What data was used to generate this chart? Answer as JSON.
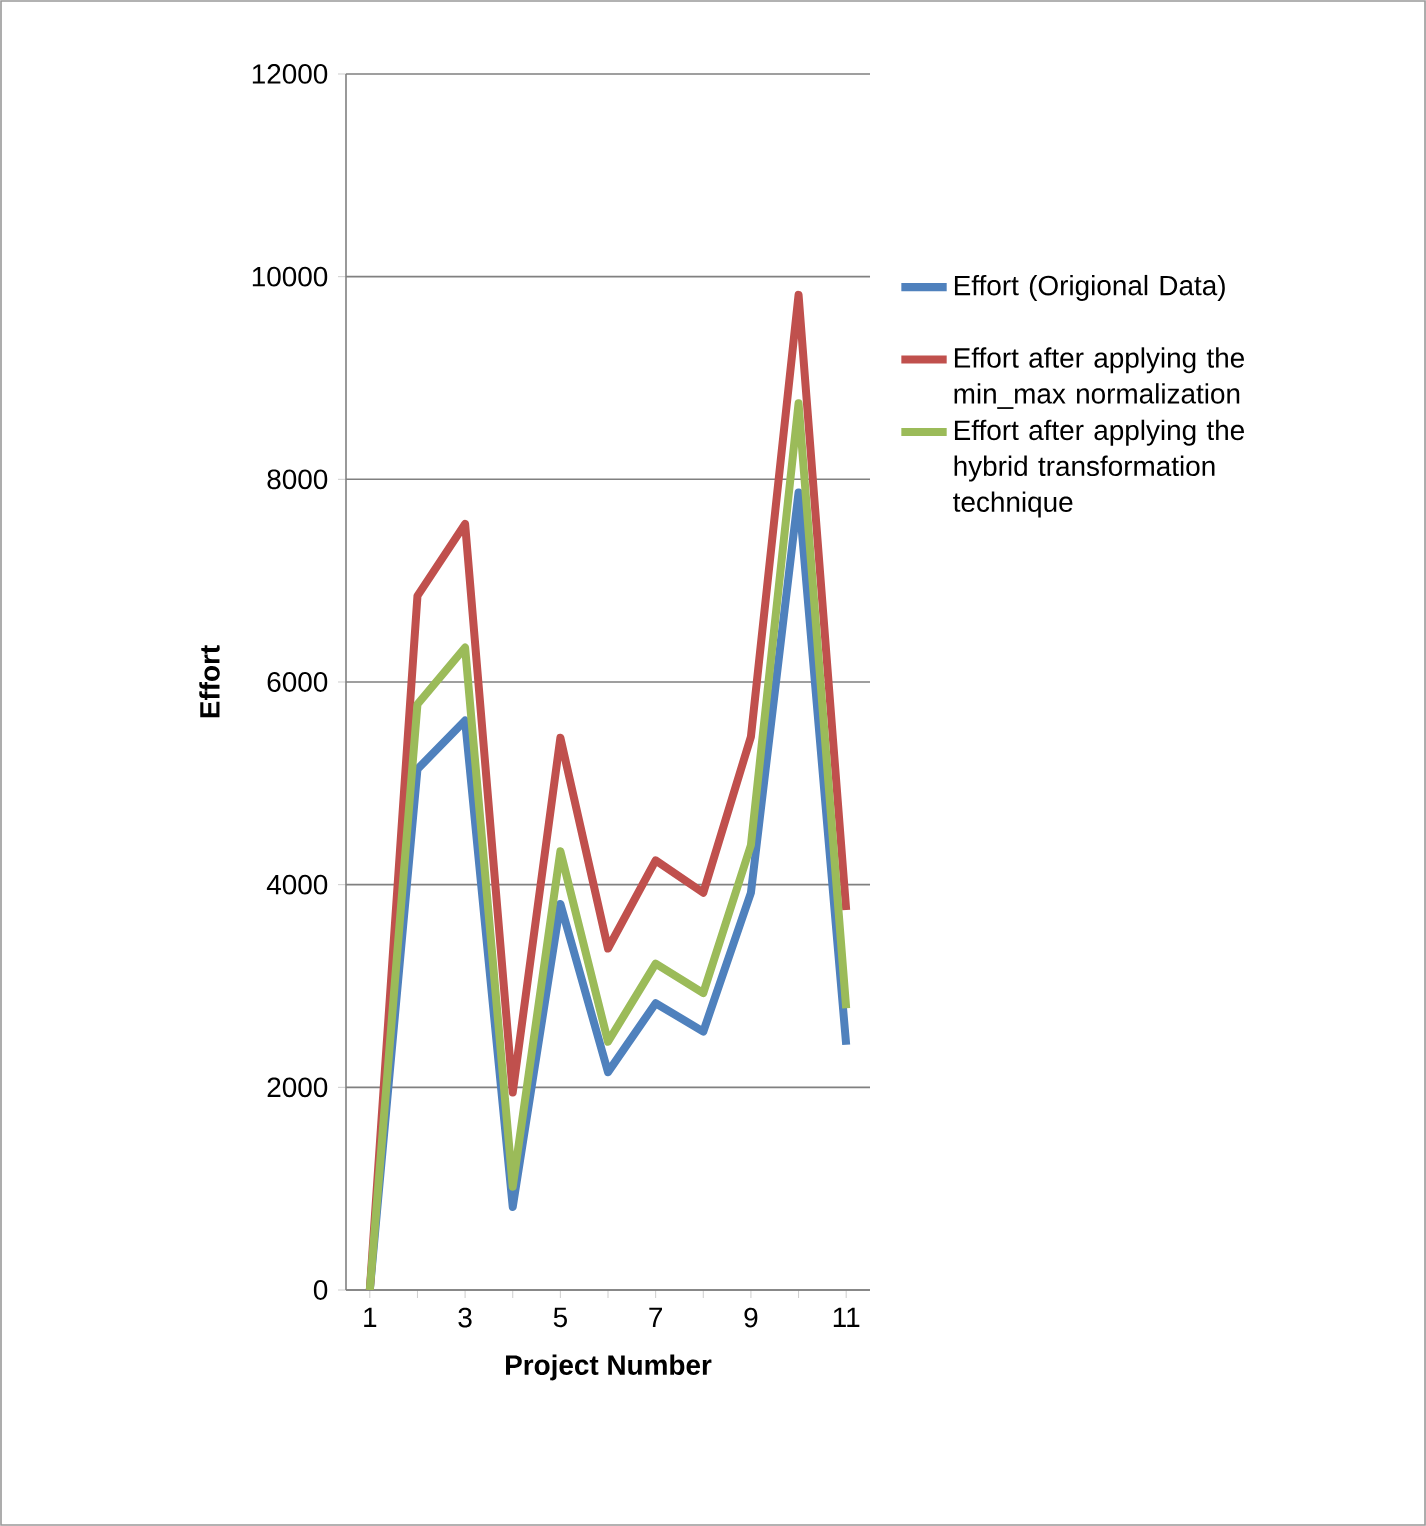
{
  "chart_data": {
    "type": "line",
    "xlabel": "Project Number",
    "ylabel": "Effort",
    "categories": [
      "1",
      null,
      "3",
      null,
      "5",
      null,
      "7",
      null,
      "9",
      null,
      "11"
    ],
    "ylim": [
      0,
      12000
    ],
    "yticks": [
      0,
      2000,
      4000,
      6000,
      8000,
      10000,
      12000
    ],
    "grid": "y",
    "legend": "right",
    "marker": "none",
    "series": [
      {
        "name": "Effort (Origional Data)",
        "color": "#4f81bd",
        "values": [
          0,
          5140,
          5620,
          820,
          3810,
          2150,
          2830,
          2550,
          3920,
          7870,
          2420
        ]
      },
      {
        "name": "Effort after applying the min_max normalization",
        "color": "#c0504d",
        "values": [
          0,
          6850,
          7560,
          1950,
          5450,
          3370,
          4240,
          3920,
          5460,
          9820,
          3750
        ]
      },
      {
        "name": "Effort after applying the hybrid transformation technique",
        "color": "#9bbb59",
        "values": [
          0,
          5780,
          6340,
          1020,
          4330,
          2450,
          3220,
          2930,
          4390,
          8750,
          2780
        ]
      }
    ]
  }
}
